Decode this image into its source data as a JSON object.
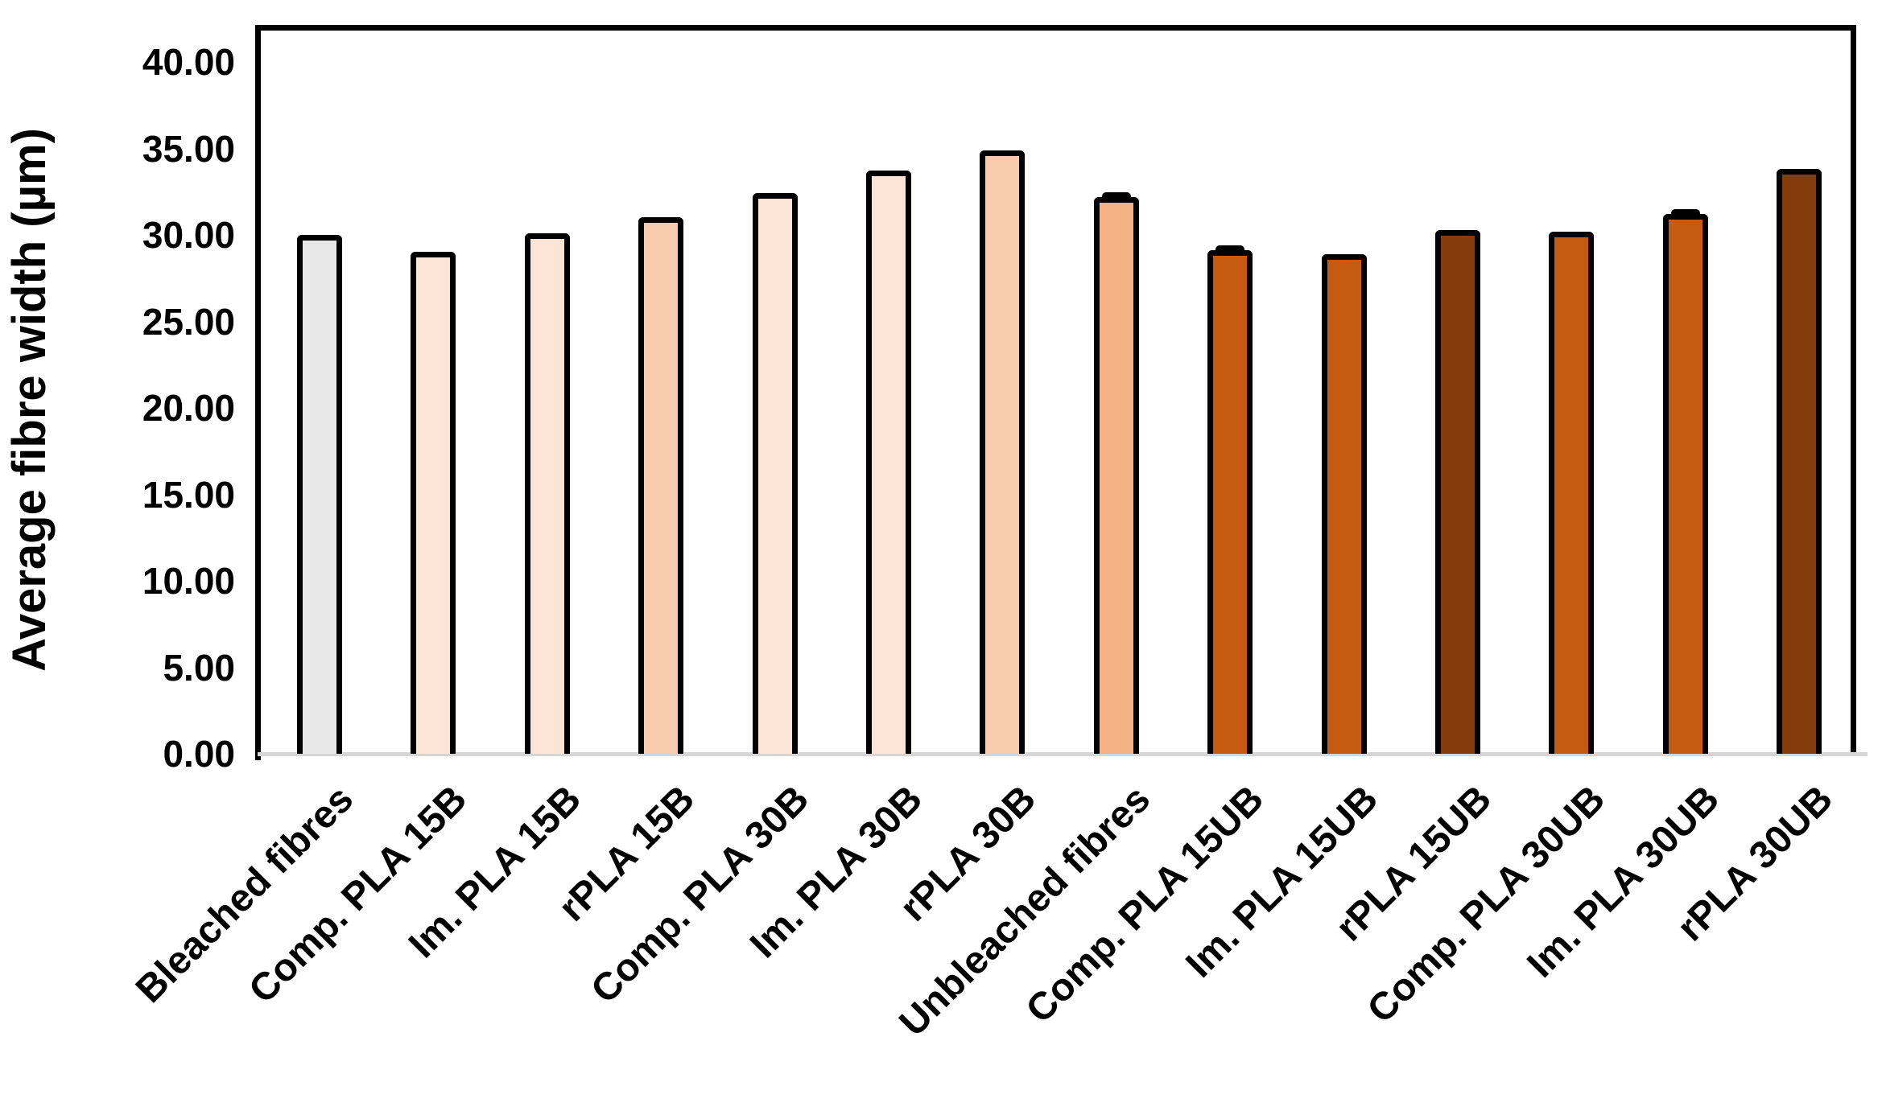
{
  "chart_data": {
    "type": "bar",
    "title": "",
    "ylabel": "Average fibre width (µm)",
    "xlabel": "",
    "ylim": [
      0,
      40
    ],
    "ytick_step": 5,
    "ytick_labels": [
      "0.00",
      "5.00",
      "10.00",
      "15.00",
      "20.00",
      "25.00",
      "30.00",
      "35.00",
      "40.00"
    ],
    "grid": false,
    "legend": false,
    "categories": [
      "Bleached fibres",
      "Comp. PLA 15B",
      "Im. PLA 15B",
      "rPLA 15B",
      "Comp. PLA 30B",
      "Im. PLA 30B",
      "rPLA 30B",
      "Unbleached fibres",
      "Comp. PLA 15UB",
      "Im. PLA 15UB",
      "rPLA 15UB",
      "Comp. PLA 30UB",
      "Im. PLA 30UB",
      "rPLA 30UB"
    ],
    "values": [
      30.0,
      29.0,
      30.1,
      31.0,
      32.4,
      33.7,
      34.9,
      32.2,
      29.1,
      28.9,
      30.3,
      30.2,
      31.2,
      33.8
    ],
    "bar_colors": [
      "#e9e8e8",
      "#fce4d6",
      "#fce4d6",
      "#f8cbad",
      "#fce4d6",
      "#fce4d6",
      "#f8cbad",
      "#f4b183",
      "#c55a11",
      "#c55a11",
      "#843c0c",
      "#c55a11",
      "#c55a11",
      "#843c0c"
    ],
    "error_caps": [
      false,
      false,
      false,
      false,
      false,
      false,
      false,
      true,
      true,
      false,
      false,
      false,
      true,
      false
    ],
    "bar_border_color": "#000000",
    "axis_color": "#000000",
    "baseline_color": "#d6d6d6"
  }
}
